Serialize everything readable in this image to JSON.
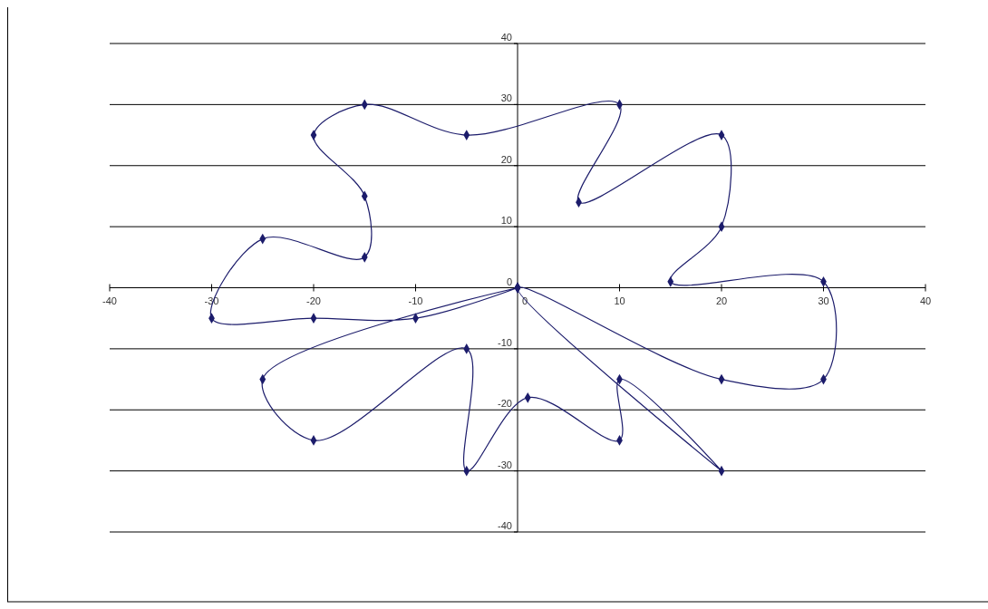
{
  "chart_data": {
    "type": "scatter",
    "marker": "diamond",
    "line_style": "solid",
    "grid": "y",
    "xlim": [
      -40,
      40
    ],
    "xticks": [
      -40,
      -30,
      -20,
      -10,
      0,
      10,
      20,
      30,
      40
    ],
    "ylim": [
      -40,
      40
    ],
    "yticks": [
      -40,
      -30,
      -20,
      -10,
      0,
      10,
      20,
      30,
      40
    ],
    "series": [
      {
        "color": "#1c1c6b",
        "x": [
          0,
          -10,
          -20,
          -30,
          -25,
          -15,
          -15,
          -20,
          -15,
          -5,
          10,
          6,
          20,
          20,
          15,
          30,
          30,
          20,
          0,
          20,
          10,
          10,
          1,
          -5,
          -5,
          -20,
          -25,
          0
        ],
        "values": [
          0,
          -5,
          -5,
          -5,
          8,
          5,
          15,
          25,
          30,
          25,
          30,
          14,
          25,
          10,
          1,
          1,
          -15,
          -15,
          0,
          -30,
          -15,
          -25,
          -18,
          -30,
          -10,
          -25,
          -15,
          0
        ]
      }
    ]
  }
}
